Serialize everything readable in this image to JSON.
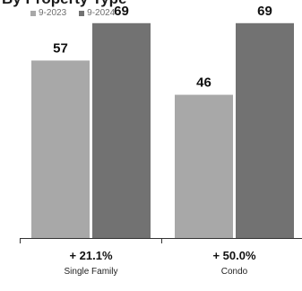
{
  "chart_data": {
    "type": "bar",
    "title": "By Property Type",
    "categories": [
      "Single Family",
      "Condo"
    ],
    "changes": [
      "+ 21.1%",
      "+ 50.0%"
    ],
    "series": [
      {
        "name": "9-2023",
        "values": [
          57,
          46
        ],
        "color": "#a8a8a8"
      },
      {
        "name": "9-2024",
        "values": [
          69,
          69
        ],
        "color": "#727272"
      }
    ],
    "ylim": [
      0,
      75
    ],
    "grid": false,
    "legend": "top-left"
  }
}
